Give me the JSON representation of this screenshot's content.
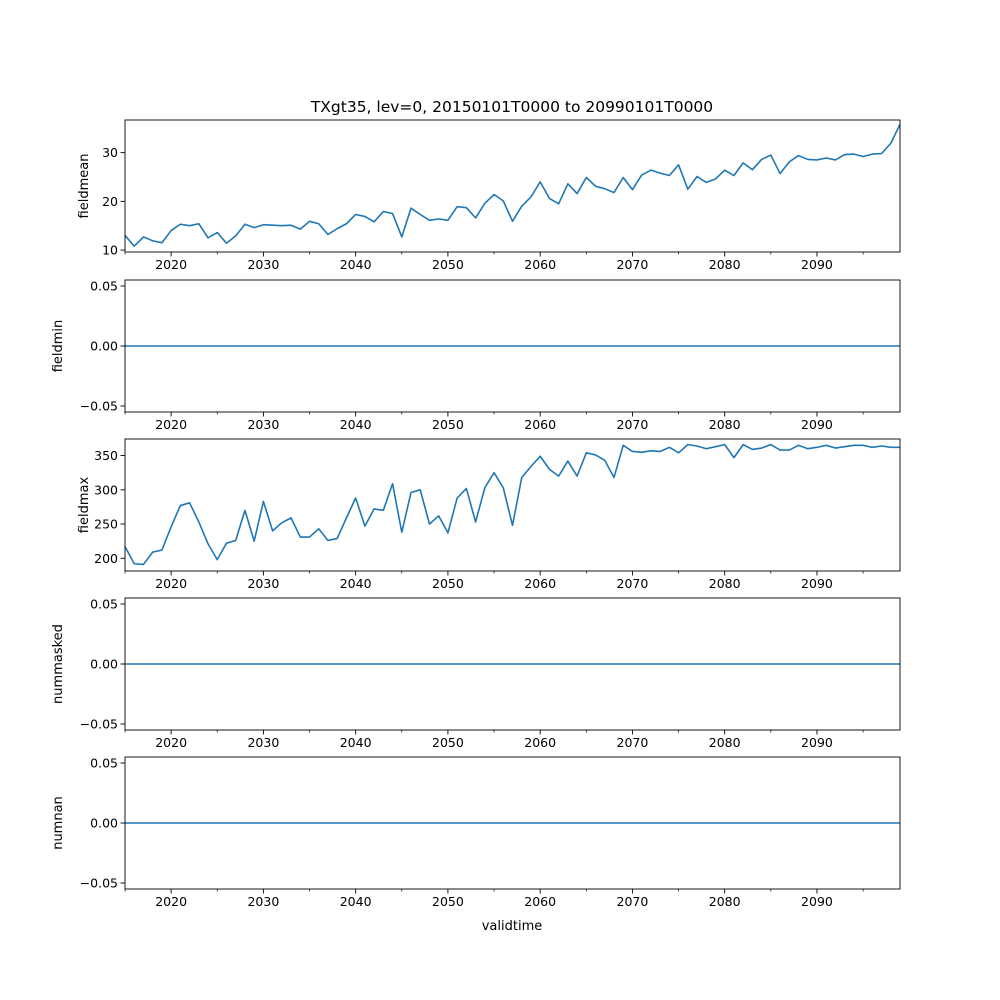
{
  "figure": {
    "title": "TXgt35, lev=0, 20150101T0000 to 20990101T0000",
    "xlabel": "validtime",
    "line_color": "#1f77b4"
  },
  "chart_data": [
    {
      "type": "line",
      "ylabel": "fieldmean",
      "xlim": [
        2015,
        2099
      ],
      "ylim": [
        9.6,
        36.7
      ],
      "yticks": [
        10,
        20,
        30
      ],
      "ytick_labels": [
        "10",
        "20",
        "30"
      ],
      "xticks": [
        2020,
        2030,
        2040,
        2050,
        2060,
        2070,
        2080,
        2090
      ],
      "xtick_labels": [
        "2020",
        "2030",
        "2040",
        "2050",
        "2060",
        "2070",
        "2080",
        "2090"
      ],
      "x": [
        2015,
        2016,
        2017,
        2018,
        2019,
        2020,
        2021,
        2022,
        2023,
        2024,
        2025,
        2026,
        2027,
        2028,
        2029,
        2030,
        2031,
        2032,
        2033,
        2034,
        2035,
        2036,
        2037,
        2038,
        2039,
        2040,
        2041,
        2042,
        2043,
        2044,
        2045,
        2046,
        2047,
        2048,
        2049,
        2050,
        2051,
        2052,
        2053,
        2054,
        2055,
        2056,
        2057,
        2058,
        2059,
        2060,
        2061,
        2062,
        2063,
        2064,
        2065,
        2066,
        2067,
        2068,
        2069,
        2070,
        2071,
        2072,
        2073,
        2074,
        2075,
        2076,
        2077,
        2078,
        2079,
        2080,
        2081,
        2082,
        2083,
        2084,
        2085,
        2086,
        2087,
        2088,
        2089,
        2090,
        2091,
        2092,
        2093,
        2094,
        2095,
        2096,
        2097,
        2098,
        2099
      ],
      "series": [
        {
          "values": [
            13.0,
            10.8,
            12.7,
            11.9,
            11.5,
            14.0,
            15.3,
            15.0,
            15.4,
            12.5,
            13.6,
            11.4,
            12.9,
            15.3,
            14.6,
            15.2,
            15.1,
            15.0,
            15.1,
            14.3,
            15.9,
            15.4,
            13.2,
            14.4,
            15.4,
            17.3,
            16.9,
            15.8,
            17.9,
            17.5,
            12.7,
            18.6,
            17.3,
            16.1,
            16.4,
            16.1,
            18.9,
            18.7,
            16.6,
            19.6,
            21.4,
            20.1,
            15.9,
            19.0,
            20.9,
            24.0,
            20.6,
            19.5,
            23.6,
            21.6,
            24.9,
            23.1,
            22.6,
            21.8,
            24.9,
            22.4,
            25.4,
            26.4,
            25.8,
            25.3,
            27.5,
            22.5,
            25.1,
            23.9,
            24.6,
            26.4,
            25.3,
            27.9,
            26.5,
            28.6,
            29.5,
            25.7,
            28.1,
            29.4,
            28.6,
            28.5,
            28.9,
            28.5,
            29.6,
            29.7,
            29.2,
            29.7,
            29.8,
            31.9,
            35.8
          ]
        }
      ]
    },
    {
      "type": "line",
      "ylabel": "fieldmin",
      "xlim": [
        2015,
        2099
      ],
      "ylim": [
        -0.055,
        0.055
      ],
      "yticks": [
        -0.05,
        0,
        0.05
      ],
      "ytick_labels": [
        "−0.05",
        "0.00",
        "0.05"
      ],
      "xticks": [
        2020,
        2030,
        2040,
        2050,
        2060,
        2070,
        2080,
        2090
      ],
      "xtick_labels": [
        "2020",
        "2030",
        "2040",
        "2050",
        "2060",
        "2070",
        "2080",
        "2090"
      ],
      "x": [
        2015,
        2099
      ],
      "series": [
        {
          "values": [
            0,
            0
          ]
        }
      ]
    },
    {
      "type": "line",
      "ylabel": "fieldmax",
      "xlim": [
        2015,
        2099
      ],
      "ylim": [
        181.4,
        374.2
      ],
      "yticks": [
        200,
        250,
        300,
        350
      ],
      "ytick_labels": [
        "200",
        "250",
        "300",
        "350"
      ],
      "xticks": [
        2020,
        2030,
        2040,
        2050,
        2060,
        2070,
        2080,
        2090
      ],
      "xtick_labels": [
        "2020",
        "2030",
        "2040",
        "2050",
        "2060",
        "2070",
        "2080",
        "2090"
      ],
      "x": [
        2015,
        2016,
        2017,
        2018,
        2019,
        2020,
        2021,
        2022,
        2023,
        2024,
        2025,
        2026,
        2027,
        2028,
        2029,
        2030,
        2031,
        2032,
        2033,
        2034,
        2035,
        2036,
        2037,
        2038,
        2039,
        2040,
        2041,
        2042,
        2043,
        2044,
        2045,
        2046,
        2047,
        2048,
        2049,
        2050,
        2051,
        2052,
        2053,
        2054,
        2055,
        2056,
        2057,
        2058,
        2059,
        2060,
        2061,
        2062,
        2063,
        2064,
        2065,
        2066,
        2067,
        2068,
        2069,
        2070,
        2071,
        2072,
        2073,
        2074,
        2075,
        2076,
        2077,
        2078,
        2079,
        2080,
        2081,
        2082,
        2083,
        2084,
        2085,
        2086,
        2087,
        2088,
        2089,
        2090,
        2091,
        2092,
        2093,
        2094,
        2095,
        2096,
        2097,
        2098,
        2099
      ],
      "series": [
        {
          "values": [
            217,
            192,
            191,
            209,
            212,
            246,
            277,
            281,
            253,
            221,
            198,
            222,
            226,
            270,
            225,
            283,
            240,
            252,
            259,
            231,
            231,
            243,
            226,
            229,
            259,
            288,
            247,
            272,
            270,
            309,
            238,
            296,
            300,
            250,
            262,
            237,
            288,
            302,
            253,
            303,
            325,
            303,
            248,
            318,
            334,
            349,
            330,
            320,
            342,
            320,
            354,
            351,
            343,
            318,
            365,
            356,
            355,
            357,
            356,
            362,
            354,
            366,
            364,
            360,
            363,
            366,
            347,
            366,
            359,
            361,
            366,
            358,
            358,
            365,
            360,
            362,
            365,
            361,
            363,
            365,
            365,
            362,
            364,
            362,
            362
          ]
        }
      ]
    },
    {
      "type": "line",
      "ylabel": "nummasked",
      "xlim": [
        2015,
        2099
      ],
      "ylim": [
        -0.055,
        0.055
      ],
      "yticks": [
        -0.05,
        0,
        0.05
      ],
      "ytick_labels": [
        "−0.05",
        "0.00",
        "0.05"
      ],
      "xticks": [
        2020,
        2030,
        2040,
        2050,
        2060,
        2070,
        2080,
        2090
      ],
      "xtick_labels": [
        "2020",
        "2030",
        "2040",
        "2050",
        "2060",
        "2070",
        "2080",
        "2090"
      ],
      "x": [
        2015,
        2099
      ],
      "series": [
        {
          "values": [
            0,
            0
          ]
        }
      ]
    },
    {
      "type": "line",
      "ylabel": "numnan",
      "xlim": [
        2015,
        2099
      ],
      "ylim": [
        -0.055,
        0.055
      ],
      "yticks": [
        -0.05,
        0,
        0.05
      ],
      "ytick_labels": [
        "−0.05",
        "0.00",
        "0.05"
      ],
      "xticks": [
        2020,
        2030,
        2040,
        2050,
        2060,
        2070,
        2080,
        2090
      ],
      "xtick_labels": [
        "2020",
        "2030",
        "2040",
        "2050",
        "2060",
        "2070",
        "2080",
        "2090"
      ],
      "x": [
        2015,
        2099
      ],
      "series": [
        {
          "values": [
            0,
            0
          ]
        }
      ]
    }
  ]
}
